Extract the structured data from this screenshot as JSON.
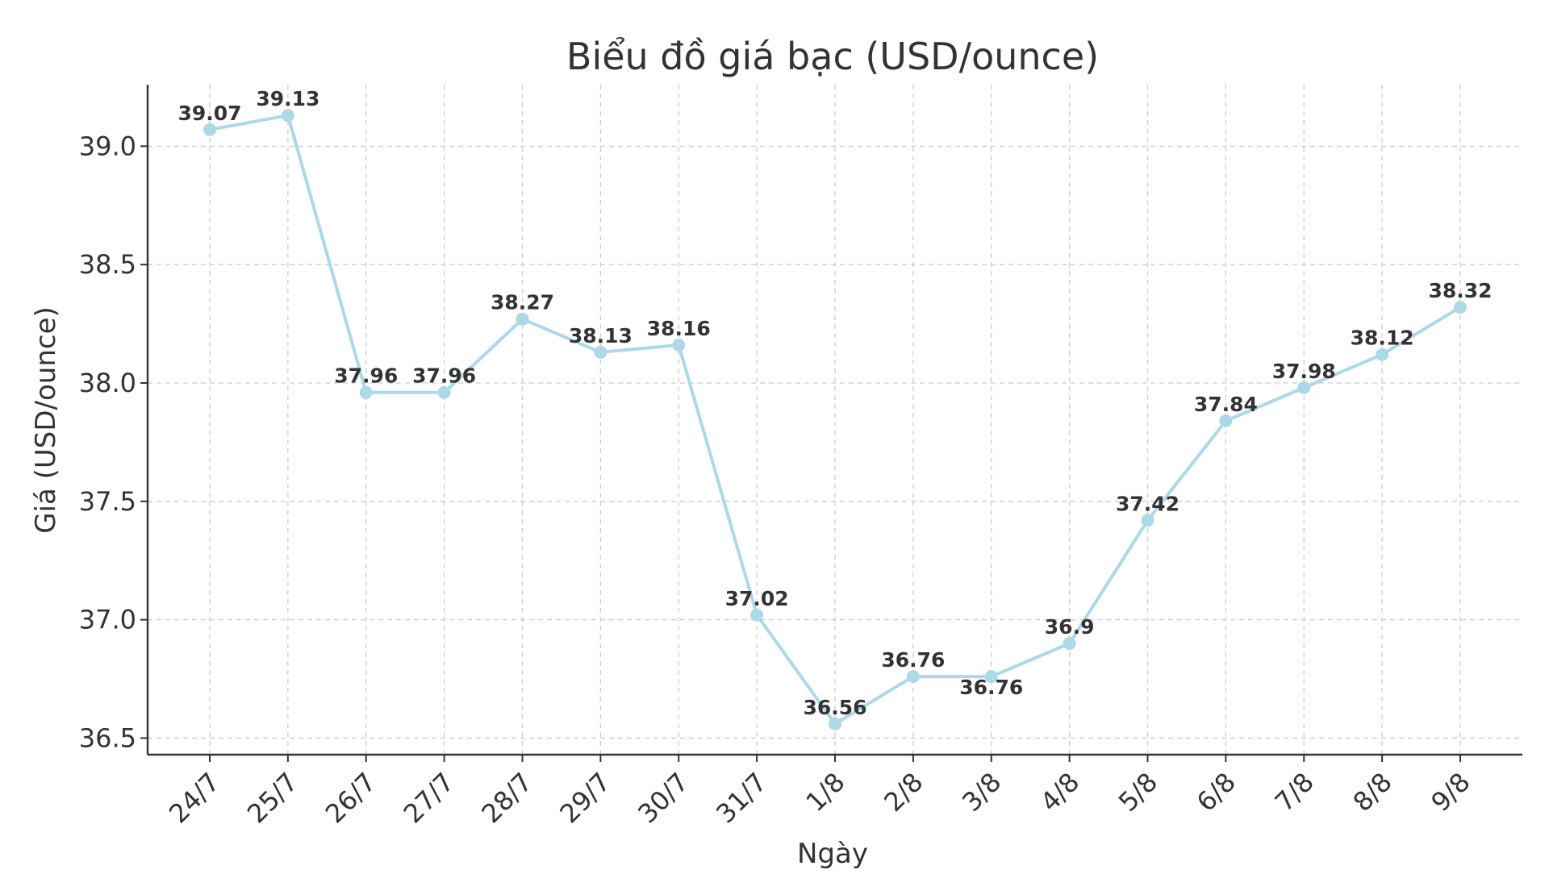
{
  "chart_data": {
    "type": "line",
    "title": "Biểu đồ giá bạc (USD/ounce)",
    "xlabel": "Ngày",
    "ylabel": "Giá (USD/ounce)",
    "categories": [
      "24/7",
      "25/7",
      "26/7",
      "27/7",
      "28/7",
      "29/7",
      "30/7",
      "31/7",
      "1/8",
      "2/8",
      "3/8",
      "4/8",
      "5/8",
      "6/8",
      "7/8",
      "8/8",
      "9/8"
    ],
    "values": [
      39.07,
      39.13,
      37.96,
      37.96,
      38.27,
      38.13,
      38.16,
      37.02,
      36.56,
      36.76,
      36.76,
      36.9,
      37.42,
      37.84,
      37.98,
      38.12,
      38.32
    ],
    "data_labels": [
      "39.07",
      "39.13",
      "37.96",
      "37.96",
      "38.27",
      "38.13",
      "38.16",
      "37.02",
      "36.56",
      "36.76",
      "36.76",
      "36.9",
      "37.42",
      "37.84",
      "37.98",
      "38.12",
      "38.32"
    ],
    "ylim": [
      36.43,
      39.26
    ],
    "yticks": [
      36.5,
      37.0,
      37.5,
      38.0,
      38.5,
      39.0
    ],
    "ytick_labels": [
      "36.5",
      "37.0",
      "37.5",
      "38.0",
      "38.5",
      "39.0"
    ],
    "grid": true,
    "line_color": "#add8e6",
    "text_color": "#333333",
    "grid_color": "#cccccc"
  }
}
